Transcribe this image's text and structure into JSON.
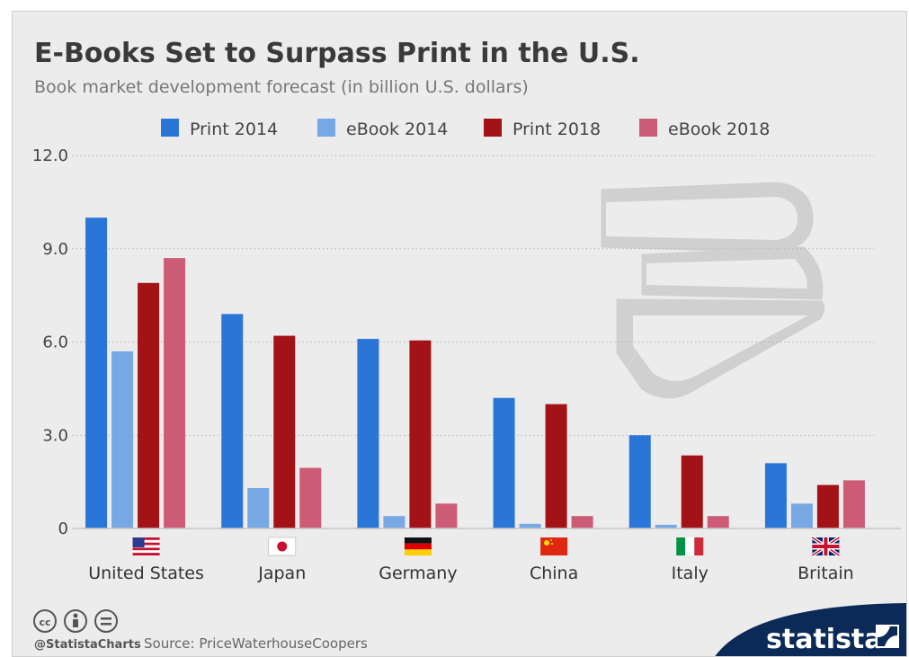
{
  "header": {
    "title": "E-Books Set to Surpass Print in the U.S.",
    "subtitle": "Book market development forecast (in billion U.S. dollars)"
  },
  "chart_data": {
    "type": "bar",
    "categories": [
      "United States",
      "Japan",
      "Germany",
      "China",
      "Italy",
      "Britain"
    ],
    "series": [
      {
        "name": "Print 2014",
        "color": "#2a76d8",
        "values": [
          10.0,
          6.9,
          6.1,
          4.2,
          3.0,
          2.1
        ]
      },
      {
        "name": "eBook 2014",
        "color": "#78a8e3",
        "values": [
          5.7,
          1.3,
          0.4,
          0.15,
          0.12,
          0.8
        ]
      },
      {
        "name": "Print 2018",
        "color": "#a31216",
        "values": [
          7.9,
          6.2,
          6.05,
          4.0,
          2.35,
          1.4
        ]
      },
      {
        "name": "eBook 2018",
        "color": "#cc5c76",
        "values": [
          8.7,
          1.95,
          0.8,
          0.4,
          0.4,
          1.55
        ]
      }
    ],
    "yticks": [
      "0",
      "3.0",
      "6.0",
      "9.0",
      "12.0"
    ],
    "ylim": [
      0,
      12
    ],
    "grid": true,
    "legend_position": "top"
  },
  "flags": [
    "us-flag-icon",
    "japan-flag-icon",
    "germany-flag-icon",
    "china-flag-icon",
    "italy-flag-icon",
    "britain-flag-icon"
  ],
  "footer": {
    "license_icons": [
      "cc-icon",
      "by-icon",
      "nd-icon"
    ],
    "handle": "@StatistaCharts",
    "source": "Source: PriceWaterhouseCoopers",
    "brand": "statista"
  },
  "illustration": "books-stack-icon"
}
